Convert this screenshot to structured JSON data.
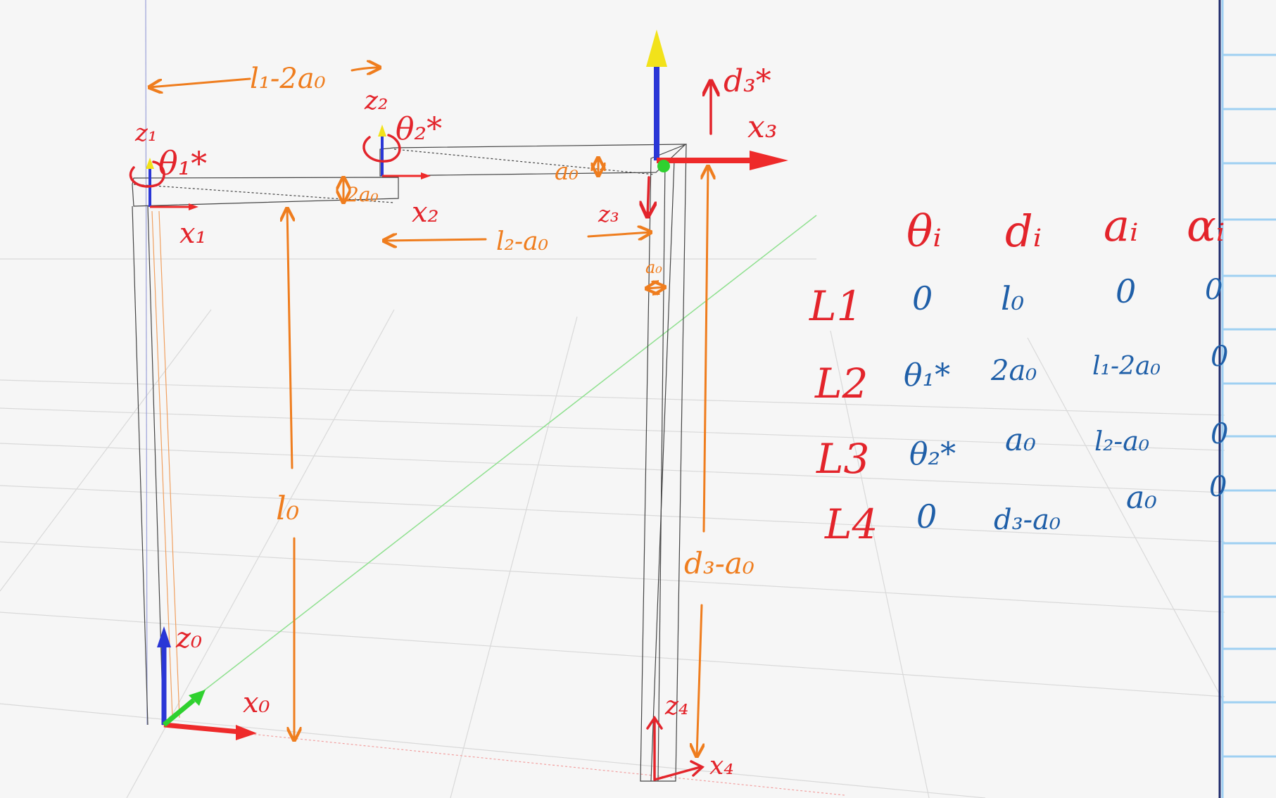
{
  "colors": {
    "orange_ink": "#ef7d1e",
    "red_ink": "#e3242b",
    "blue_ink": "#1f5fa8",
    "axis_x": "#ee2a2a",
    "axis_y": "#2fd12f",
    "axis_z": "#2a36d6",
    "tip_yellow": "#f2e21a",
    "grid": "#d9d9d9",
    "notebook_line": "#9fd0f2"
  },
  "annotations": {
    "l1_minus_2a0": "l₁-2a₀",
    "z1": "z₁",
    "theta1_star": "θ₁*",
    "z2": "z₂",
    "theta2_star": "θ₂*",
    "d3_star": "d₃*",
    "x3": "x₃",
    "x1": "x₁",
    "two_a0": "2a₀",
    "x2": "x₂",
    "a0_top": "a₀",
    "z3": "z₃",
    "l2_minus_a0": "l₂-a₀",
    "a0_small": "a₀",
    "l0": "l₀",
    "d3_minus_a0": "d₃-a₀",
    "z0": "z₀",
    "x0": "x₀",
    "z4": "z₄",
    "x4": "x₄"
  },
  "dh_table": {
    "headers": [
      "θᵢ",
      "dᵢ",
      "aᵢ",
      "αᵢ"
    ],
    "rows": [
      {
        "link": "L1",
        "theta": "0",
        "d": "l₀",
        "a": "0",
        "alpha": "0"
      },
      {
        "link": "L2",
        "theta": "θ₁*",
        "d": "2a₀",
        "a": "l₁-2a₀",
        "alpha": "0"
      },
      {
        "link": "L3",
        "theta": "θ₂*",
        "d": "a₀",
        "a": "l₂-a₀",
        "alpha": "0"
      },
      {
        "link": "L4",
        "theta": "0",
        "d": "d₃-a₀",
        "a": "a₀",
        "alpha": "0"
      }
    ]
  }
}
